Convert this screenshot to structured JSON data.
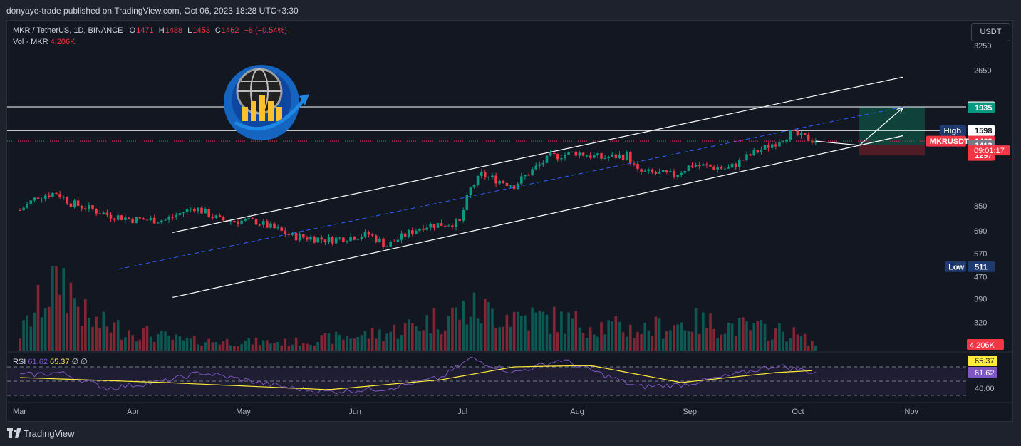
{
  "header": {
    "published_by": "donyaye-trade published on TradingView.com, Oct 06, 2023 18:28 UTC+3:30"
  },
  "legend": {
    "symbol": "MKR / TetherUS, 1D, BINANCE",
    "open_key": "O",
    "open": "1471",
    "high_key": "H",
    "high": "1488",
    "low_key": "L",
    "low": "1453",
    "close_key": "C",
    "close": "1462",
    "change": "−8 (−0.54%)",
    "vol_label": "Vol · MKR",
    "vol_value": "4.206K"
  },
  "currency_button": "USDT",
  "rsi": {
    "label": "RSI",
    "value": "61.62",
    "ma_value": "65.37",
    "extra": "∅ ∅"
  },
  "footer": {
    "brand": "TradingView"
  },
  "colors": {
    "up": "#089981",
    "down": "#f23645",
    "bg": "#131722",
    "panel": "#1e222d",
    "channel": "#ffffff",
    "midline": "#2962ff",
    "rsi_line": "#7e57c2",
    "rsi_ma": "#ffeb3b",
    "target_zone": "#0e4a3f",
    "stop_zone": "#5c1f28"
  },
  "chart_data": {
    "type": "candlestick",
    "title": "MKR / TetherUS, 1D, BINANCE",
    "y_scale": "log",
    "ylim": [
      280,
      3600
    ],
    "y_ticks": [
      3250,
      2650,
      850,
      690,
      570,
      470,
      390,
      320
    ],
    "x_labels": [
      "Mar",
      "Apr",
      "May",
      "Jun",
      "Jul",
      "Aug",
      "Sep",
      "Oct",
      "Nov"
    ],
    "price_path": [
      {
        "date": "2023-03-01",
        "price": 820
      },
      {
        "date": "2023-03-06",
        "price": 920
      },
      {
        "date": "2023-03-11",
        "price": 950
      },
      {
        "date": "2023-03-15",
        "price": 870
      },
      {
        "date": "2023-03-20",
        "price": 830
      },
      {
        "date": "2023-03-25",
        "price": 790
      },
      {
        "date": "2023-04-01",
        "price": 760
      },
      {
        "date": "2023-04-10",
        "price": 755
      },
      {
        "date": "2023-04-18",
        "price": 840
      },
      {
        "date": "2023-04-25",
        "price": 755
      },
      {
        "date": "2023-05-05",
        "price": 745
      },
      {
        "date": "2023-05-15",
        "price": 660
      },
      {
        "date": "2023-05-25",
        "price": 640
      },
      {
        "date": "2023-06-05",
        "price": 670
      },
      {
        "date": "2023-06-10",
        "price": 610
      },
      {
        "date": "2023-06-20",
        "price": 720
      },
      {
        "date": "2023-06-30",
        "price": 740
      },
      {
        "date": "2023-07-03",
        "price": 980
      },
      {
        "date": "2023-07-06",
        "price": 1100
      },
      {
        "date": "2023-07-15",
        "price": 1010
      },
      {
        "date": "2023-07-25",
        "price": 1280
      },
      {
        "date": "2023-08-01",
        "price": 1330
      },
      {
        "date": "2023-08-08",
        "price": 1270
      },
      {
        "date": "2023-08-15",
        "price": 1300
      },
      {
        "date": "2023-08-18",
        "price": 1130
      },
      {
        "date": "2023-08-28",
        "price": 1100
      },
      {
        "date": "2023-09-02",
        "price": 1200
      },
      {
        "date": "2023-09-12",
        "price": 1160
      },
      {
        "date": "2023-09-18",
        "price": 1300
      },
      {
        "date": "2023-09-25",
        "price": 1450
      },
      {
        "date": "2023-09-29",
        "price": 1560
      },
      {
        "date": "2023-10-06",
        "price": 1462
      }
    ],
    "volume_path": [
      {
        "date": "2023-03-01",
        "volume": 20
      },
      {
        "date": "2023-03-12",
        "volume": 95
      },
      {
        "date": "2023-03-20",
        "volume": 35
      },
      {
        "date": "2023-04-15",
        "volume": 12
      },
      {
        "date": "2023-05-15",
        "volume": 10
      },
      {
        "date": "2023-06-10",
        "volume": 22
      },
      {
        "date": "2023-07-03",
        "volume": 50
      },
      {
        "date": "2023-07-25",
        "volume": 38
      },
      {
        "date": "2023-08-18",
        "volume": 25
      },
      {
        "date": "2023-09-02",
        "volume": 35
      },
      {
        "date": "2023-09-29",
        "volume": 22
      },
      {
        "date": "2023-10-06",
        "volume": 8
      }
    ],
    "rsi_path": [
      {
        "date": "2023-03-01",
        "rsi": 58
      },
      {
        "date": "2023-03-12",
        "rsi": 62
      },
      {
        "date": "2023-03-25",
        "rsi": 40
      },
      {
        "date": "2023-04-10",
        "rsi": 50
      },
      {
        "date": "2023-04-20",
        "rsi": 62
      },
      {
        "date": "2023-05-15",
        "rsi": 40
      },
      {
        "date": "2023-05-25",
        "rsi": 35
      },
      {
        "date": "2023-06-10",
        "rsi": 40
      },
      {
        "date": "2023-06-25",
        "rsi": 55
      },
      {
        "date": "2023-07-03",
        "rsi": 82
      },
      {
        "date": "2023-07-15",
        "rsi": 62
      },
      {
        "date": "2023-07-28",
        "rsi": 80
      },
      {
        "date": "2023-08-18",
        "rsi": 42
      },
      {
        "date": "2023-08-30",
        "rsi": 45
      },
      {
        "date": "2023-09-10",
        "rsi": 55
      },
      {
        "date": "2023-09-25",
        "rsi": 72
      },
      {
        "date": "2023-10-06",
        "rsi": 62
      }
    ],
    "rsi_ma_path": [
      {
        "date": "2023-03-01",
        "rsi": 55
      },
      {
        "date": "2023-04-10",
        "rsi": 48
      },
      {
        "date": "2023-05-25",
        "rsi": 38
      },
      {
        "date": "2023-06-25",
        "rsi": 52
      },
      {
        "date": "2023-07-15",
        "rsi": 70
      },
      {
        "date": "2023-08-05",
        "rsi": 72
      },
      {
        "date": "2023-08-30",
        "rsi": 48
      },
      {
        "date": "2023-09-25",
        "rsi": 62
      },
      {
        "date": "2023-10-06",
        "rsi": 65
      }
    ],
    "rsi_levels": [
      70,
      50,
      30
    ],
    "rsi_tick": "40.00",
    "horizontal_levels": [
      1948,
      1598
    ],
    "price_labels": [
      {
        "label": "",
        "value": "1948",
        "color": "#ffffff",
        "text_color": "#131722"
      },
      {
        "label": "",
        "value": "1935",
        "color": "#089981",
        "text_color": "#ffffff"
      },
      {
        "label": "High",
        "value": "1600",
        "color": "#1e3a6e",
        "text_color": "#ffffff"
      },
      {
        "label": "",
        "value": "1598",
        "color": "#ffffff",
        "text_color": "#131722"
      },
      {
        "label": "MKRUSDT",
        "value": "1462",
        "color": "#f23645",
        "text_color": "#ffffff"
      },
      {
        "label": "",
        "value": "1412",
        "color": "#787b86",
        "text_color": "#ffffff"
      },
      {
        "label": "",
        "value": "1297",
        "color": "#f23645",
        "text_color": "#ffffff"
      },
      {
        "label": "Low",
        "value": "511",
        "color": "#1e3a6e",
        "text_color": "#ffffff"
      }
    ],
    "countdown": "09:01:17",
    "volume_label": "4.206K",
    "rsi_value_labels": [
      "65.37",
      "61.62"
    ],
    "channel": {
      "upper": [
        {
          "date": "2023-04-12",
          "price": 680
        },
        {
          "date": "2023-10-30",
          "price": 2500
        }
      ],
      "lower": [
        {
          "date": "2023-04-12",
          "price": 395
        },
        {
          "date": "2023-10-30",
          "price": 1530
        }
      ],
      "mid": [
        {
          "date": "2023-03-28",
          "price": 500
        },
        {
          "date": "2023-10-30",
          "price": 1948
        }
      ]
    },
    "projection": {
      "path": [
        {
          "date": "2023-10-06",
          "price": 1462
        },
        {
          "date": "2023-10-18",
          "price": 1412
        },
        {
          "date": "2023-10-30",
          "price": 1935
        }
      ],
      "zone_start": "2023-10-18",
      "zone_end": "2023-11-05",
      "target": 1948,
      "entry": 1412,
      "stop": 1297
    }
  }
}
